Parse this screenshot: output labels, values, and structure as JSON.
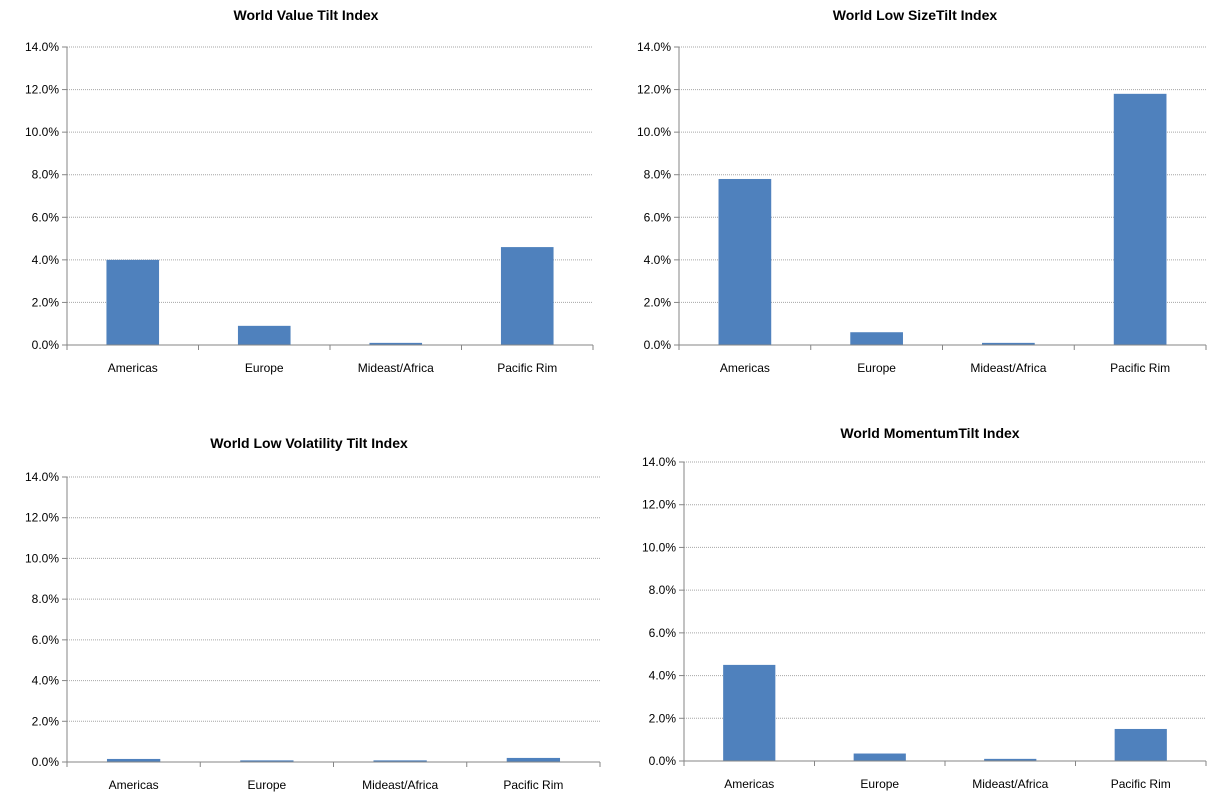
{
  "chart_data": [
    {
      "type": "bar",
      "title": "World Value Tilt Index",
      "categories": [
        "Americas",
        "Europe",
        "Mideast/Africa",
        "Pacific Rim"
      ],
      "values": [
        4.0,
        0.9,
        0.1,
        4.6
      ],
      "yticks": [
        "0.0%",
        "2.0%",
        "4.0%",
        "6.0%",
        "8.0%",
        "10.0%",
        "12.0%",
        "14.0%"
      ],
      "ylim": [
        0,
        14
      ],
      "grid": true,
      "bar_color": "#4f81bd"
    },
    {
      "type": "bar",
      "title": "World Low SizeTilt Index",
      "categories": [
        "Americas",
        "Europe",
        "Mideast/Africa",
        "Pacific Rim"
      ],
      "values": [
        7.8,
        0.6,
        0.1,
        11.8
      ],
      "yticks": [
        "0.0%",
        "2.0%",
        "4.0%",
        "6.0%",
        "8.0%",
        "10.0%",
        "12.0%",
        "14.0%"
      ],
      "ylim": [
        0,
        14
      ],
      "grid": true,
      "bar_color": "#4f81bd"
    },
    {
      "type": "bar",
      "title": "World Low Volatility Tilt Index",
      "categories": [
        "Americas",
        "Europe",
        "Mideast/Africa",
        "Pacific Rim"
      ],
      "values": [
        0.15,
        0.08,
        0.08,
        0.2
      ],
      "yticks": [
        "0.0%",
        "2.0%",
        "4.0%",
        "6.0%",
        "8.0%",
        "10.0%",
        "12.0%",
        "14.0%"
      ],
      "ylim": [
        0,
        14
      ],
      "grid": true,
      "bar_color": "#4f81bd"
    },
    {
      "type": "bar",
      "title": "World MomentumTilt Index",
      "categories": [
        "Americas",
        "Europe",
        "Mideast/Africa",
        "Pacific Rim"
      ],
      "values": [
        4.5,
        0.35,
        0.1,
        1.5
      ],
      "yticks": [
        "0.0%",
        "2.0%",
        "4.0%",
        "6.0%",
        "8.0%",
        "10.0%",
        "12.0%",
        "14.0%"
      ],
      "ylim": [
        0,
        14
      ],
      "grid": true,
      "bar_color": "#4f81bd"
    }
  ]
}
